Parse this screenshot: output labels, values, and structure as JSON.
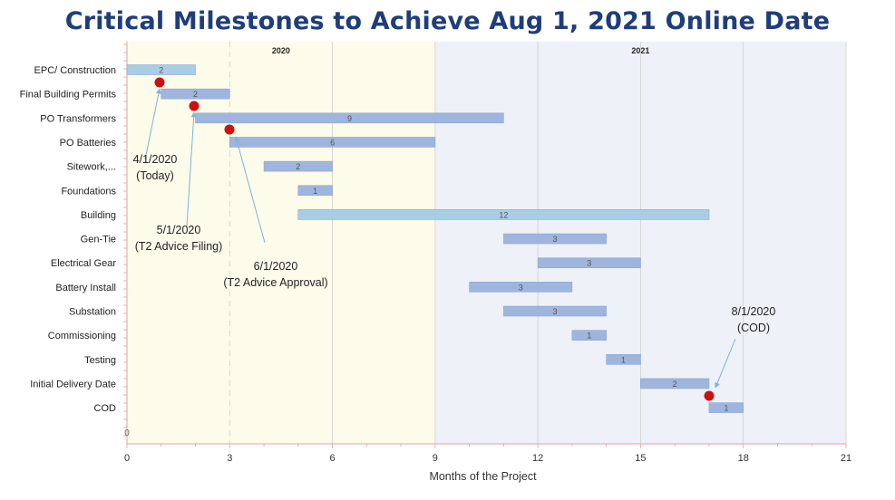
{
  "title": "Critical Milestones to Achieve Aug 1, 2021 Online Date",
  "chart_data": {
    "type": "bar",
    "orientation": "horizontal-gantt",
    "xlabel": "Months of the Project",
    "xlim": [
      0,
      21
    ],
    "xticks": [
      0,
      3,
      6,
      9,
      12,
      15,
      18,
      21
    ],
    "y_origin_label": "0",
    "year_bands": [
      {
        "label": "2020",
        "start": 0,
        "end": 9,
        "color": "#fdfbe9"
      },
      {
        "label": "2021",
        "start": 9,
        "end": 21,
        "color": "#eef1f8"
      }
    ],
    "categories": [
      "EPC/ Construction",
      "Final Building Permits",
      "PO Transformers",
      "PO Batteries",
      "Sitework,...",
      "Foundations",
      "Building",
      "Gen-Tie",
      "Electrical Gear",
      "Battery Install",
      "Substation",
      "Commissioning",
      "Testing",
      "Initial Delivery Date",
      "COD"
    ],
    "series": [
      {
        "start": [
          0,
          1,
          2,
          3,
          4,
          5,
          5,
          11,
          12,
          10,
          11,
          13,
          14,
          15,
          17
        ],
        "duration": [
          2,
          2,
          9,
          6,
          2,
          1,
          12,
          3,
          3,
          3,
          3,
          1,
          1,
          2,
          1
        ]
      }
    ],
    "bar_colors": [
      "#a9cde4",
      "#9fb5dd",
      "#9fb5dd",
      "#9fb5dd",
      "#9fb5dd",
      "#9fb5dd",
      "#a9cde4",
      "#9fb5dd",
      "#9fb5dd",
      "#9fb5dd",
      "#9fb5dd",
      "#9fb5dd",
      "#9fb5dd",
      "#9fb5dd",
      "#9fb5dd"
    ],
    "milestones": [
      {
        "x": 1,
        "row": 1,
        "label_lines": [
          "4/1/2020",
          "(Today)"
        ]
      },
      {
        "x": 2,
        "row": 2,
        "label_lines": [
          "5/1/2020",
          "(T2 Advice Filing)"
        ]
      },
      {
        "x": 3,
        "row": 3,
        "label_lines": [
          "6/1/2020",
          "(T2 Advice Approval)"
        ]
      },
      {
        "x": 17,
        "row": 14,
        "label_lines": [
          "8/1/2020",
          "(COD)"
        ]
      }
    ],
    "milestone_color": "#cc1111",
    "grid": true
  }
}
